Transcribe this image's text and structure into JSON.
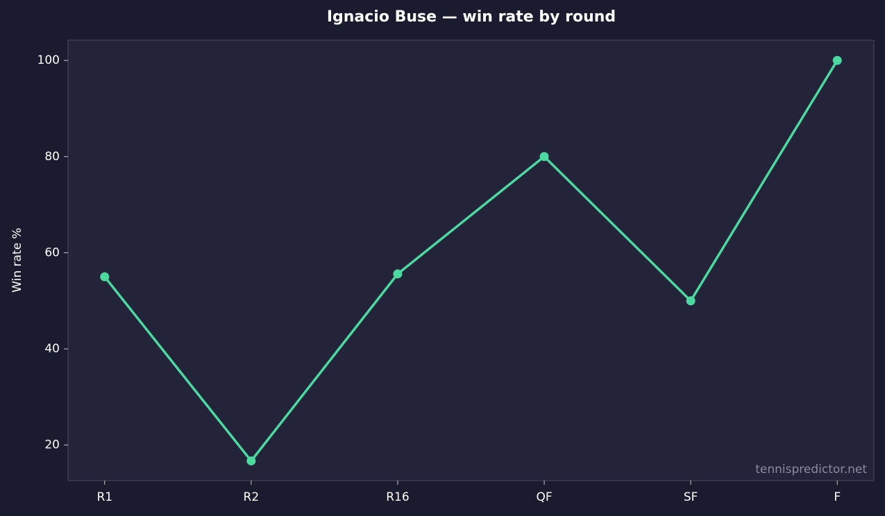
{
  "chart_data": {
    "type": "line",
    "title": "Ignacio Buse — win rate by round",
    "y_label": "Win rate %",
    "watermark": "tennispredictor.net",
    "categories": [
      "R1",
      "R2",
      "R16",
      "QF",
      "SF",
      "F"
    ],
    "series": [
      {
        "name": "Win rate",
        "color": "#4cd9a0",
        "values": [
          55,
          16.7,
          55.6,
          80,
          50,
          100
        ]
      }
    ],
    "ylim": [
      12.6,
      104.2
    ],
    "yticks": [
      20,
      40,
      60,
      80,
      100
    ],
    "grid": false
  }
}
